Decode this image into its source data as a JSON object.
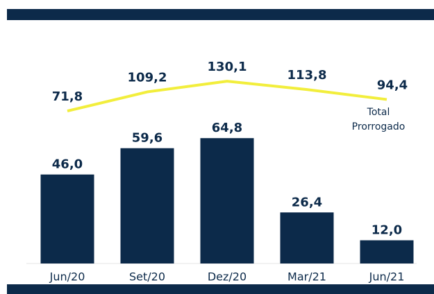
{
  "chart_data": {
    "type": "bar",
    "categories": [
      "Jun/20",
      "Set/20",
      "Dez/20",
      "Mar/21",
      "Jun/21"
    ],
    "series": [
      {
        "type": "bar",
        "color": "#0c2a4a",
        "values": [
          46.0,
          59.6,
          64.8,
          26.4,
          12.0
        ],
        "value_labels": [
          "46,0",
          "59,6",
          "64,8",
          "26,4",
          "12,0"
        ]
      },
      {
        "type": "line",
        "name": "Total Prorrogado",
        "color": "#f2ee3c",
        "values": [
          71.8,
          109.2,
          130.1,
          113.8,
          94.4
        ],
        "value_labels": [
          "71,8",
          "109,2",
          "130,1",
          "113,8",
          "94,4"
        ]
      }
    ]
  }
}
